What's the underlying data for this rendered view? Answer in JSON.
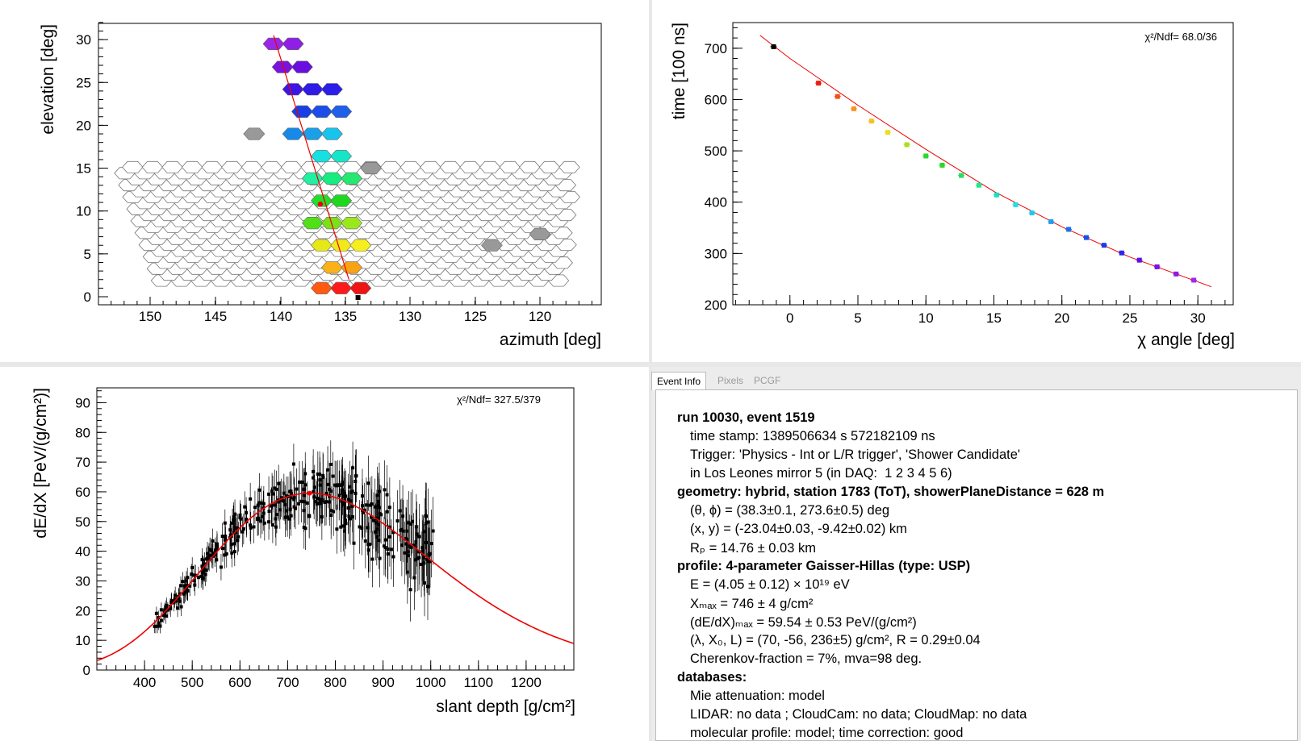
{
  "camera_plot": {
    "xlabel": "azimuth  [deg]",
    "ylabel": "elevation  [deg]",
    "x_ticks": [
      "150",
      "145",
      "140",
      "135",
      "130",
      "125",
      "120"
    ],
    "y_ticks": [
      "0",
      "5",
      "10",
      "15",
      "20",
      "25",
      "30"
    ],
    "chart_data": {
      "type": "heatmap",
      "xlabel": "azimuth  [deg]",
      "ylabel": "elevation  [deg]",
      "xlim": [
        154,
        115
      ],
      "ylim": [
        -1,
        33
      ],
      "hit_pixels": [
        {
          "az": 140.5,
          "el": 29.5,
          "color": "#9a26e8"
        },
        {
          "az": 139.0,
          "el": 29.5,
          "color": "#8f1fe6"
        },
        {
          "az": 139.8,
          "el": 26.8,
          "color": "#7a12e0"
        },
        {
          "az": 138.3,
          "el": 26.8,
          "color": "#6a0ee0"
        },
        {
          "az": 139.0,
          "el": 24.2,
          "color": "#3d16e6"
        },
        {
          "az": 137.5,
          "el": 24.2,
          "color": "#2f1ae6"
        },
        {
          "az": 136.0,
          "el": 24.2,
          "color": "#2a1ee8"
        },
        {
          "az": 138.3,
          "el": 21.6,
          "color": "#1a3ee6"
        },
        {
          "az": 136.8,
          "el": 21.6,
          "color": "#1b4ee8"
        },
        {
          "az": 135.3,
          "el": 21.6,
          "color": "#1f5fea"
        },
        {
          "az": 139.0,
          "el": 19.0,
          "color": "#168ae8"
        },
        {
          "az": 137.5,
          "el": 19.0,
          "color": "#1aa0e8"
        },
        {
          "az": 136.0,
          "el": 19.0,
          "color": "#16c4ee"
        },
        {
          "az": 136.8,
          "el": 16.4,
          "color": "#16e0e0"
        },
        {
          "az": 135.3,
          "el": 16.4,
          "color": "#16e6c8"
        },
        {
          "az": 137.5,
          "el": 13.8,
          "color": "#20f0a0"
        },
        {
          "az": 136.0,
          "el": 13.8,
          "color": "#16ec80"
        },
        {
          "az": 134.5,
          "el": 13.8,
          "color": "#24e870"
        },
        {
          "az": 136.8,
          "el": 11.2,
          "color": "#22e02a"
        },
        {
          "az": 135.3,
          "el": 11.2,
          "color": "#1ed81e"
        },
        {
          "az": 137.5,
          "el": 8.6,
          "color": "#50e018"
        },
        {
          "az": 136.0,
          "el": 8.6,
          "color": "#7be018"
        },
        {
          "az": 134.5,
          "el": 8.6,
          "color": "#9ae81c"
        },
        {
          "az": 136.8,
          "el": 6.0,
          "color": "#e6e81a"
        },
        {
          "az": 135.3,
          "el": 6.0,
          "color": "#f0ea1a"
        },
        {
          "az": 133.8,
          "el": 6.0,
          "color": "#f6ee1e"
        },
        {
          "az": 136.0,
          "el": 3.4,
          "color": "#fbb21a"
        },
        {
          "az": 134.5,
          "el": 3.4,
          "color": "#f8a216"
        },
        {
          "az": 136.8,
          "el": 1.0,
          "color": "#ff5a12"
        },
        {
          "az": 135.3,
          "el": 1.0,
          "color": "#ff1a1a"
        },
        {
          "az": 133.8,
          "el": 1.0,
          "color": "#f01414"
        }
      ],
      "grey_pixels": [
        {
          "az": 142.0,
          "el": 19.0
        },
        {
          "az": 133.0,
          "el": 15.0
        },
        {
          "az": 123.7,
          "el": 6.0
        },
        {
          "az": 120.0,
          "el": 7.3
        }
      ],
      "fit_line": [
        [
          140.5,
          30.5
        ],
        [
          134.7,
          2.0
        ]
      ],
      "station_point": [
        134.0,
        -0.1
      ],
      "core_point": [
        136.9,
        10.8
      ]
    }
  },
  "timing_plot": {
    "xlabel": "χ angle [deg]",
    "ylabel": "time [100 ns]",
    "chi2": "χ²/Ndf=   68.0/36",
    "x_ticks": [
      "0",
      "5",
      "10",
      "15",
      "20",
      "25",
      "30"
    ],
    "y_ticks": [
      "200",
      "300",
      "400",
      "500",
      "600",
      "700"
    ],
    "chart_data": {
      "type": "scatter",
      "xlim": [
        -4.2,
        32.6
      ],
      "ylim": [
        200,
        750
      ],
      "points": [
        {
          "x": -1.2,
          "y": 703,
          "color": "#000000"
        },
        {
          "x": 2.1,
          "y": 632,
          "color": "#ee1c10"
        },
        {
          "x": 3.5,
          "y": 606,
          "color": "#f55010"
        },
        {
          "x": 4.7,
          "y": 582,
          "color": "#f89520"
        },
        {
          "x": 6.0,
          "y": 558,
          "color": "#f8c020"
        },
        {
          "x": 7.2,
          "y": 536,
          "color": "#e8e020"
        },
        {
          "x": 8.6,
          "y": 512,
          "color": "#a8e020"
        },
        {
          "x": 10.0,
          "y": 490,
          "color": "#2cd82c"
        },
        {
          "x": 11.2,
          "y": 472,
          "color": "#28d828"
        },
        {
          "x": 12.6,
          "y": 452,
          "color": "#26e060"
        },
        {
          "x": 13.9,
          "y": 433,
          "color": "#20e890"
        },
        {
          "x": 15.2,
          "y": 414,
          "color": "#18e0c0"
        },
        {
          "x": 16.6,
          "y": 395,
          "color": "#20e0e0"
        },
        {
          "x": 17.8,
          "y": 379,
          "color": "#20c8f0"
        },
        {
          "x": 19.2,
          "y": 362,
          "color": "#1aa0ee"
        },
        {
          "x": 20.5,
          "y": 347,
          "color": "#1870ee"
        },
        {
          "x": 21.8,
          "y": 331,
          "color": "#1850ea"
        },
        {
          "x": 23.1,
          "y": 316,
          "color": "#1a3ee6"
        },
        {
          "x": 24.4,
          "y": 301,
          "color": "#2a26e6"
        },
        {
          "x": 25.7,
          "y": 287,
          "color": "#5a14e0"
        },
        {
          "x": 27.0,
          "y": 274,
          "color": "#7a14e0"
        },
        {
          "x": 28.4,
          "y": 260,
          "color": "#8e1ce6"
        },
        {
          "x": 29.7,
          "y": 248,
          "color": "#a028ea"
        }
      ],
      "fit_curve": [
        [
          -2.2,
          725
        ],
        [
          0,
          680
        ],
        [
          5,
          589
        ],
        [
          10,
          503
        ],
        [
          15,
          421
        ],
        [
          20,
          352
        ],
        [
          25,
          293
        ],
        [
          31,
          235
        ]
      ]
    }
  },
  "profile_plot": {
    "xlabel": "slant depth [g/cm²]",
    "ylabel": "dE/dX [PeV/(g/cm²)]",
    "chi2": "χ²/Ndf=  327.5/379",
    "x_ticks": [
      "400",
      "500",
      "600",
      "700",
      "800",
      "900",
      "1000",
      "1100",
      "1200"
    ],
    "y_ticks": [
      "0",
      "10",
      "20",
      "30",
      "40",
      "50",
      "60",
      "70",
      "80",
      "90"
    ],
    "chart_data": {
      "type": "scatter",
      "xlim": [
        300,
        1300
      ],
      "ylim": [
        0,
        95
      ],
      "gh_fit": {
        "Xmax": 746,
        "dEdXmax": 59.54,
        "X0": -56,
        "lambda": 70
      },
      "data_range": [
        420,
        1008
      ],
      "n_points": 380
    }
  },
  "event_panel": {
    "tabs": [
      "Event Info",
      "Pixels",
      "PCGF"
    ],
    "lines": [
      "run 10030, event 1519",
      "time stamp: 1389506634 s 572182109 ns",
      "Trigger: 'Physics - Int or L/R trigger', 'Shower Candidate'",
      "in Los Leones mirror 5 (in DAQ:  1 2 3 4 5 6)",
      "geometry: hybrid, station 1783 (ToT), showerPlaneDistance = 628 m",
      "(θ, ϕ) = (38.3±0.1, 273.6±0.5) deg",
      "(x, y) = (-23.04±0.03, -9.42±0.02) km",
      "Rₚ = 14.76 ± 0.03 km",
      "profile: 4-parameter Gaisser-Hillas (type: USP)",
      "E = (4.05 ± 0.12) × 10¹⁹ eV",
      "Xₘₐₓ = 746 ± 4 g/cm²",
      "(dE/dX)ₘₐₓ = 59.54 ± 0.53 PeV/(g/cm²)",
      "(λ, X₀, L) = (70, -56, 236±5) g/cm², R = 0.29±0.04",
      "Cherenkov-fraction = 7%, mva=98 deg.",
      "databases:",
      "Mie attenuation: model",
      "LIDAR: no data ; CloudCam: no data; CloudMap: no data",
      "molecular profile: model; time correction: good"
    ]
  }
}
